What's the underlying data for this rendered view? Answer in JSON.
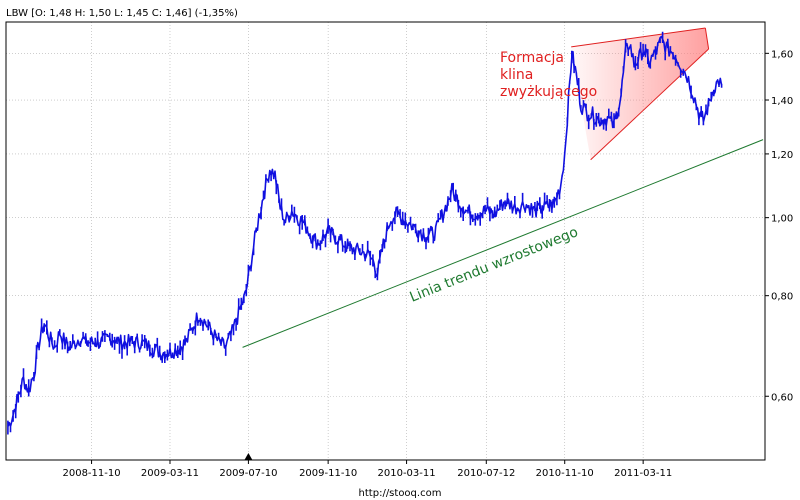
{
  "header": {
    "quote": "LBW [O: 1,48  H: 1,50  L: 1,45  C: 1,46] (-1,35%)"
  },
  "footer": {
    "source": "http://stooq.com"
  },
  "colors": {
    "price": "#1010e0",
    "grid": "#b0b0b0",
    "wedge_line": "#e02020",
    "wedge_fill": "#ff8080",
    "trend_line": "#1f7a30",
    "annotation_red": "#e02020",
    "annotation_green": "#1f7a30"
  },
  "chart_data": {
    "type": "line",
    "ticker": "LBW",
    "y_scale": "log",
    "ylim": [
      0.5,
      1.75
    ],
    "grid": true,
    "xlim": [
      "2008-07-01",
      "2011-09-15"
    ],
    "y_ticks": [
      {
        "value": 0.6,
        "label": "0,60"
      },
      {
        "value": 0.8,
        "label": "0,80"
      },
      {
        "value": 1.0,
        "label": "1,00"
      },
      {
        "value": 1.2,
        "label": "1,20"
      },
      {
        "value": 1.4,
        "label": "1,40"
      },
      {
        "value": 1.6,
        "label": "1,60"
      }
    ],
    "x_ticks": [
      {
        "date": "2008-11-10",
        "label": "2008-11-10"
      },
      {
        "date": "2009-03-11",
        "label": "2009-03-11"
      },
      {
        "date": "2009-07-10",
        "label": "2009-07-10"
      },
      {
        "date": "2009-11-10",
        "label": "2009-11-10"
      },
      {
        "date": "2010-03-11",
        "label": "2010-03-11"
      },
      {
        "date": "2010-07-12",
        "label": "2010-07-12"
      },
      {
        "date": "2010-11-10",
        "label": "2010-11-10"
      },
      {
        "date": "2011-03-11",
        "label": "2011-03-11"
      }
    ],
    "marker_date": "2009-07-10",
    "last_quote": {
      "open": 1.48,
      "high": 1.5,
      "low": 1.45,
      "close": 1.46,
      "change_pct": -1.35
    },
    "series": [
      {
        "name": "LBW",
        "points": [
          [
            "2008-07-04",
            0.55
          ],
          [
            "2008-07-12",
            0.57
          ],
          [
            "2008-07-20",
            0.6
          ],
          [
            "2008-07-28",
            0.63
          ],
          [
            "2008-08-05",
            0.61
          ],
          [
            "2008-08-13",
            0.64
          ],
          [
            "2008-08-21",
            0.7
          ],
          [
            "2008-08-29",
            0.74
          ],
          [
            "2008-09-06",
            0.71
          ],
          [
            "2008-09-14",
            0.69
          ],
          [
            "2008-09-22",
            0.72
          ],
          [
            "2008-09-30",
            0.7
          ],
          [
            "2008-10-08",
            0.69
          ],
          [
            "2008-10-16",
            0.7
          ],
          [
            "2008-10-24",
            0.71
          ],
          [
            "2008-11-01",
            0.7
          ],
          [
            "2008-11-10",
            0.7
          ],
          [
            "2008-11-25",
            0.7
          ],
          [
            "2008-12-10",
            0.71
          ],
          [
            "2008-12-25",
            0.7
          ],
          [
            "2009-01-10",
            0.7
          ],
          [
            "2009-01-25",
            0.7
          ],
          [
            "2009-02-10",
            0.69
          ],
          [
            "2009-02-25",
            0.68
          ],
          [
            "2009-03-11",
            0.68
          ],
          [
            "2009-03-25",
            0.69
          ],
          [
            "2009-04-05",
            0.7
          ],
          [
            "2009-04-15",
            0.73
          ],
          [
            "2009-04-25",
            0.76
          ],
          [
            "2009-05-05",
            0.74
          ],
          [
            "2009-05-15",
            0.72
          ],
          [
            "2009-05-25",
            0.7
          ],
          [
            "2009-06-05",
            0.69
          ],
          [
            "2009-06-15",
            0.72
          ],
          [
            "2009-06-25",
            0.76
          ],
          [
            "2009-07-05",
            0.8
          ],
          [
            "2009-07-10",
            0.84
          ],
          [
            "2009-07-18",
            0.92
          ],
          [
            "2009-07-26",
            1.0
          ],
          [
            "2009-08-04",
            1.08
          ],
          [
            "2009-08-12",
            1.15
          ],
          [
            "2009-08-20",
            1.13
          ],
          [
            "2009-08-28",
            1.03
          ],
          [
            "2009-09-05",
            0.99
          ],
          [
            "2009-09-15",
            1.02
          ],
          [
            "2009-09-25",
            1.0
          ],
          [
            "2009-10-05",
            0.98
          ],
          [
            "2009-10-15",
            0.95
          ],
          [
            "2009-10-25",
            0.93
          ],
          [
            "2009-11-10",
            0.96
          ],
          [
            "2009-11-25",
            0.94
          ],
          [
            "2009-12-10",
            0.92
          ],
          [
            "2009-12-25",
            0.91
          ],
          [
            "2010-01-10",
            0.9
          ],
          [
            "2010-01-20",
            0.88
          ],
          [
            "2010-01-25",
            0.85
          ],
          [
            "2010-02-05",
            0.94
          ],
          [
            "2010-02-15",
            1.0
          ],
          [
            "2010-02-25",
            1.01
          ],
          [
            "2010-03-11",
            0.99
          ],
          [
            "2010-03-25",
            0.97
          ],
          [
            "2010-04-10",
            0.95
          ],
          [
            "2010-04-25",
            0.96
          ],
          [
            "2010-05-10",
            1.03
          ],
          [
            "2010-05-20",
            1.08
          ],
          [
            "2010-05-30",
            1.05
          ],
          [
            "2010-06-10",
            1.02
          ],
          [
            "2010-06-25",
            1.01
          ],
          [
            "2010-07-12",
            1.02
          ],
          [
            "2010-07-25",
            1.01
          ],
          [
            "2010-08-10",
            1.05
          ],
          [
            "2010-08-25",
            1.03
          ],
          [
            "2010-09-10",
            1.04
          ],
          [
            "2010-09-25",
            1.02
          ],
          [
            "2010-10-10",
            1.03
          ],
          [
            "2010-10-25",
            1.04
          ],
          [
            "2010-11-04",
            1.1
          ],
          [
            "2010-11-10",
            1.2
          ],
          [
            "2010-11-16",
            1.4
          ],
          [
            "2010-11-21",
            1.6
          ],
          [
            "2010-11-28",
            1.5
          ],
          [
            "2010-12-05",
            1.38
          ],
          [
            "2010-12-15",
            1.35
          ],
          [
            "2010-12-25",
            1.34
          ],
          [
            "2011-01-05",
            1.32
          ],
          [
            "2011-01-15",
            1.33
          ],
          [
            "2011-01-25",
            1.3
          ],
          [
            "2011-02-05",
            1.42
          ],
          [
            "2011-02-12",
            1.6
          ],
          [
            "2011-02-18",
            1.65
          ],
          [
            "2011-02-25",
            1.55
          ],
          [
            "2011-03-05",
            1.58
          ],
          [
            "2011-03-11",
            1.62
          ],
          [
            "2011-03-20",
            1.56
          ],
          [
            "2011-03-30",
            1.6
          ],
          [
            "2011-04-08",
            1.66
          ],
          [
            "2011-04-18",
            1.62
          ],
          [
            "2011-04-28",
            1.6
          ],
          [
            "2011-05-08",
            1.55
          ],
          [
            "2011-05-18",
            1.5
          ],
          [
            "2011-05-28",
            1.42
          ],
          [
            "2011-06-05",
            1.35
          ],
          [
            "2011-06-12",
            1.32
          ],
          [
            "2011-06-20",
            1.38
          ],
          [
            "2011-06-28",
            1.45
          ],
          [
            "2011-07-06",
            1.48
          ],
          [
            "2011-07-10",
            1.46
          ]
        ]
      }
    ],
    "annotations": [
      {
        "type": "trendline",
        "text": "Linia trendu wzrostowego",
        "from": [
          "2009-07-01",
          0.69
        ],
        "to": [
          "2011-09-12",
          1.25
        ]
      },
      {
        "type": "rising-wedge",
        "text_lines": [
          "Formacja",
          "klina",
          "zwyżkującego"
        ],
        "upper": [
          [
            "2010-11-20",
            1.63
          ],
          [
            "2011-06-15",
            1.72
          ]
        ],
        "lower": [
          [
            "2010-12-20",
            1.18
          ],
          [
            "2011-06-20",
            1.62
          ]
        ]
      }
    ]
  }
}
